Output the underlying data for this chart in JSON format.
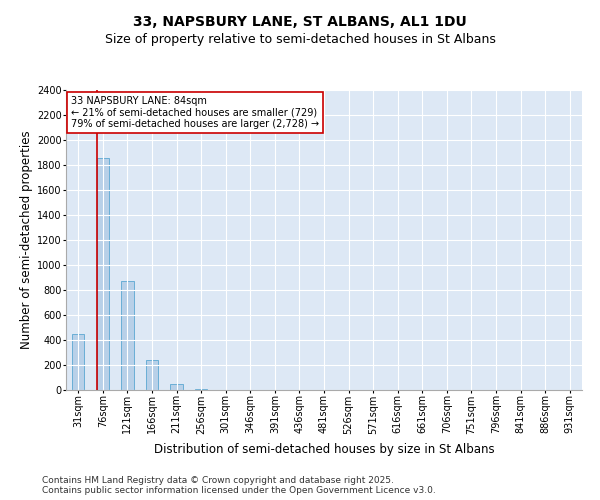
{
  "title1": "33, NAPSBURY LANE, ST ALBANS, AL1 1DU",
  "title2": "Size of property relative to semi-detached houses in St Albans",
  "xlabel": "Distribution of semi-detached houses by size in St Albans",
  "ylabel": "Number of semi-detached properties",
  "categories": [
    "31sqm",
    "76sqm",
    "121sqm",
    "166sqm",
    "211sqm",
    "256sqm",
    "301sqm",
    "346sqm",
    "391sqm",
    "436sqm",
    "481sqm",
    "526sqm",
    "571sqm",
    "616sqm",
    "661sqm",
    "706sqm",
    "751sqm",
    "796sqm",
    "841sqm",
    "886sqm",
    "931sqm"
  ],
  "values": [
    450,
    1860,
    870,
    240,
    50,
    10,
    3,
    0,
    0,
    0,
    0,
    0,
    0,
    0,
    0,
    0,
    0,
    0,
    0,
    0,
    0
  ],
  "bar_color": "#b8d0e8",
  "bar_edgecolor": "#6aaed6",
  "bar_linewidth": 0.7,
  "vline_x_index": 0.575,
  "vline_color": "#cc0000",
  "annotation_text": "33 NAPSBURY LANE: 84sqm\n← 21% of semi-detached houses are smaller (729)\n79% of semi-detached houses are larger (2,728) →",
  "annotation_box_edgecolor": "#cc0000",
  "annotation_box_facecolor": "white",
  "ylim": [
    0,
    2400
  ],
  "yticks": [
    0,
    200,
    400,
    600,
    800,
    1000,
    1200,
    1400,
    1600,
    1800,
    2000,
    2200,
    2400
  ],
  "background_color": "#dde8f5",
  "footer_text": "Contains HM Land Registry data © Crown copyright and database right 2025.\nContains public sector information licensed under the Open Government Licence v3.0.",
  "title_fontsize": 10,
  "subtitle_fontsize": 9,
  "axis_label_fontsize": 8.5,
  "tick_fontsize": 7,
  "footer_fontsize": 6.5,
  "bar_width": 0.5
}
